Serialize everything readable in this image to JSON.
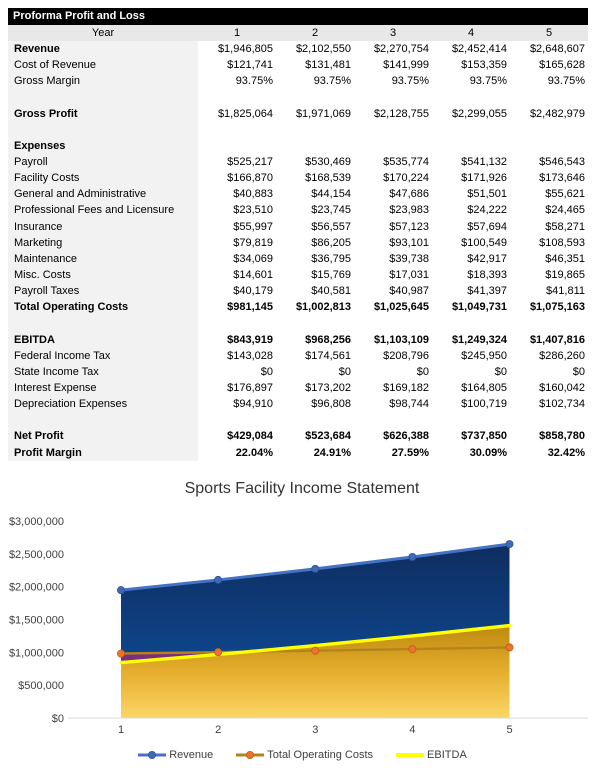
{
  "report": {
    "title": "Proforma Profit and Loss",
    "year_label": "Year",
    "year_headers": [
      "1",
      "2",
      "3",
      "4",
      "5"
    ],
    "rows": [
      {
        "label": "Revenue",
        "bold": true,
        "values": [
          "$1,946,805",
          "$2,102,550",
          "$2,270,754",
          "$2,452,414",
          "$2,648,607"
        ]
      },
      {
        "label": "Cost of Revenue",
        "values": [
          "$121,741",
          "$131,481",
          "$141,999",
          "$153,359",
          "$165,628"
        ]
      },
      {
        "label": "Gross Margin",
        "values": [
          "93.75%",
          "93.75%",
          "93.75%",
          "93.75%",
          "93.75%"
        ]
      },
      {
        "blank": true
      },
      {
        "label": "Gross Profit",
        "bold": true,
        "values": [
          "$1,825,064",
          "$1,971,069",
          "$2,128,755",
          "$2,299,055",
          "$2,482,979"
        ]
      },
      {
        "blank": true
      },
      {
        "label": "Expenses",
        "bold": true,
        "values": [
          "",
          "",
          "",
          "",
          ""
        ]
      },
      {
        "label": "Payroll",
        "values": [
          "$525,217",
          "$530,469",
          "$535,774",
          "$541,132",
          "$546,543"
        ]
      },
      {
        "label": "Facility Costs",
        "values": [
          "$166,870",
          "$168,539",
          "$170,224",
          "$171,926",
          "$173,646"
        ]
      },
      {
        "label": "General and Administrative",
        "values": [
          "$40,883",
          "$44,154",
          "$47,686",
          "$51,501",
          "$55,621"
        ]
      },
      {
        "label": "Professional Fees and Licensure",
        "values": [
          "$23,510",
          "$23,745",
          "$23,983",
          "$24,222",
          "$24,465"
        ]
      },
      {
        "label": "Insurance",
        "values": [
          "$55,997",
          "$56,557",
          "$57,123",
          "$57,694",
          "$58,271"
        ]
      },
      {
        "label": "Marketing",
        "values": [
          "$79,819",
          "$86,205",
          "$93,101",
          "$100,549",
          "$108,593"
        ]
      },
      {
        "label": "Maintenance",
        "values": [
          "$34,069",
          "$36,795",
          "$39,738",
          "$42,917",
          "$46,351"
        ]
      },
      {
        "label": "Misc. Costs",
        "values": [
          "$14,601",
          "$15,769",
          "$17,031",
          "$18,393",
          "$19,865"
        ]
      },
      {
        "label": "Payroll Taxes",
        "values": [
          "$40,179",
          "$40,581",
          "$40,987",
          "$41,397",
          "$41,811"
        ]
      },
      {
        "label": "Total Operating Costs",
        "bold": true,
        "vbold": true,
        "values": [
          "$981,145",
          "$1,002,813",
          "$1,025,645",
          "$1,049,731",
          "$1,075,163"
        ]
      },
      {
        "blank": true
      },
      {
        "label": "EBITDA",
        "bold": true,
        "vbold": true,
        "values": [
          "$843,919",
          "$968,256",
          "$1,103,109",
          "$1,249,324",
          "$1,407,816"
        ]
      },
      {
        "label": "Federal Income Tax",
        "values": [
          "$143,028",
          "$174,561",
          "$208,796",
          "$245,950",
          "$286,260"
        ]
      },
      {
        "label": "State Income Tax",
        "values": [
          "$0",
          "$0",
          "$0",
          "$0",
          "$0"
        ]
      },
      {
        "label": "Interest Expense",
        "values": [
          "$176,897",
          "$173,202",
          "$169,182",
          "$164,805",
          "$160,042"
        ]
      },
      {
        "label": "Depreciation Expenses",
        "values": [
          "$94,910",
          "$96,808",
          "$98,744",
          "$100,719",
          "$102,734"
        ]
      },
      {
        "blank": true
      },
      {
        "label": "Net Profit",
        "bold": true,
        "vbold": true,
        "values": [
          "$429,084",
          "$523,684",
          "$626,388",
          "$737,850",
          "$858,780"
        ]
      },
      {
        "label": "Profit Margin",
        "bold": true,
        "vbold": true,
        "values": [
          "22.04%",
          "24.91%",
          "27.59%",
          "30.09%",
          "32.42%"
        ]
      }
    ]
  },
  "chart_data": {
    "type": "area",
    "title": "Sports Facility Income Statement",
    "x": [
      1,
      2,
      3,
      4,
      5
    ],
    "series": [
      {
        "name": "Revenue",
        "values": [
          1946805,
          2102550,
          2270754,
          2452414,
          2648607
        ],
        "line_color": "#4472C4",
        "marker": true,
        "marker_color": "#3F69B5",
        "marker_edge": "#2E5395",
        "fill_gradient": [
          "#0F2D5F",
          "#0C52A2"
        ]
      },
      {
        "name": "Total Operating Costs",
        "values": [
          981145,
          1002813,
          1025645,
          1049731,
          1075163
        ],
        "line_color": "#B5831C",
        "marker": true,
        "marker_color": "#E9732F",
        "marker_edge": "#C55A11",
        "fill_solid": "#7B2E81"
      },
      {
        "name": "EBITDA",
        "values": [
          843919,
          968256,
          1103109,
          1249324,
          1407816
        ],
        "line_color": "#FFFF00",
        "marker": false,
        "fill_gradient": [
          "#BD890E",
          "#E5AE2D",
          "#FCD666"
        ]
      }
    ],
    "ylim": [
      0,
      3000000
    ],
    "y_ticks": [
      {
        "value": 0,
        "label": "$0"
      },
      {
        "value": 500000,
        "label": "$500,000"
      },
      {
        "value": 1000000,
        "label": "$1,000,000"
      },
      {
        "value": 1500000,
        "label": "$1,500,000"
      },
      {
        "value": 2000000,
        "label": "$2,000,000"
      },
      {
        "value": 2500000,
        "label": "$2,500,000"
      },
      {
        "value": 3000000,
        "label": "$3,000,000"
      }
    ],
    "xlabel": "",
    "ylabel": "",
    "gridlines": false,
    "legend_position": "bottom",
    "axis_color": "#D9D9D9",
    "tick_text_color": "#404040"
  }
}
